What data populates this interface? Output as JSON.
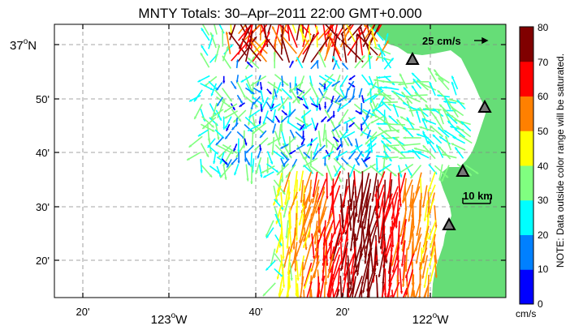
{
  "title": "MNTY Totals: 30–Apr–2011 22:00 GMT+0.000",
  "lat_labels": [
    "37",
    "50'",
    "40'",
    "30'",
    "20'"
  ],
  "lat_deg_suffix": "o",
  "lat_hemisphere": "N",
  "lon_labels_minor": [
    "20'",
    "40'",
    "20'"
  ],
  "lon_labels_major": [
    "123",
    "122"
  ],
  "lon_deg_suffix": "o",
  "lon_hemisphere": "W",
  "velocity_scale_label": "25 cm/s",
  "distance_scale_label": "10 km",
  "colorbar": {
    "ticks": [
      "80",
      "70",
      "60",
      "50",
      "40",
      "30",
      "20",
      "10",
      "0"
    ],
    "unit": "cm/s",
    "note": "NOTE: Data outside color range will be saturated.",
    "colors": [
      "#0000ff",
      "#0080ff",
      "#00ffff",
      "#80ff80",
      "#ffff00",
      "#ff8000",
      "#ff0000",
      "#800000"
    ],
    "range": [
      0,
      80
    ]
  },
  "land_color": "#66dd77",
  "station_marker": "triangle-icon"
}
